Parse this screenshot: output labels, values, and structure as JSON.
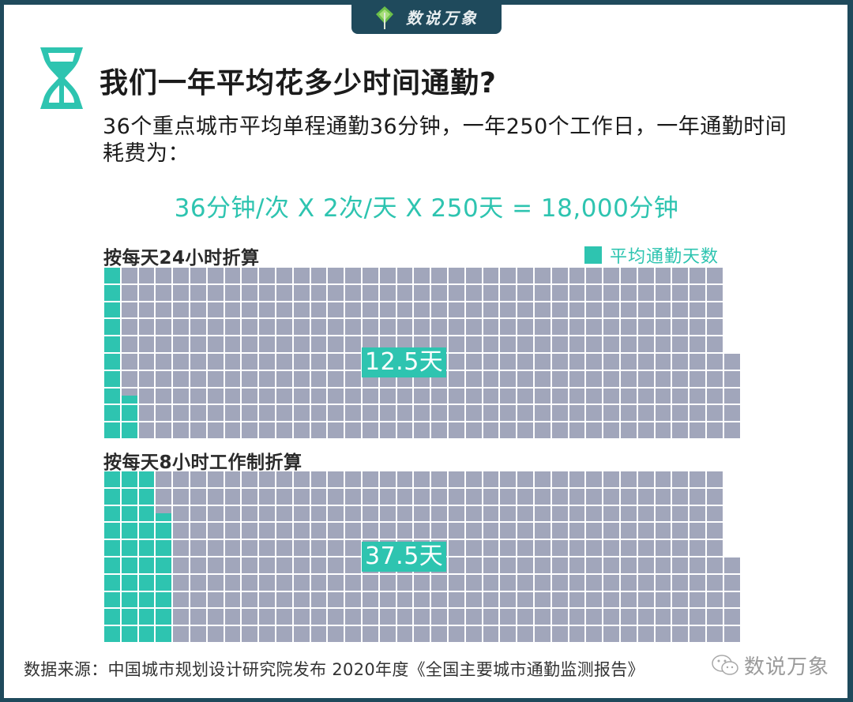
{
  "brand": {
    "name": "数说万象",
    "icon": "leaf-tree-logo-icon"
  },
  "header": {
    "icon": "hourglass-icon",
    "title": "我们一年平均花多少时间通勤?"
  },
  "intro": {
    "text": "36个重点城市平均单程通勤36分钟，一年250个工作日，一年通勤时间耗费为："
  },
  "formula": {
    "text": "36分钟/次 X 2次/天 X 250天 = 18,000分钟"
  },
  "legend": {
    "label": "平均通勤天数",
    "color": "#2ec4b0"
  },
  "colors": {
    "accent": "#2ec4b0",
    "empty_cell": "#a1a6bb",
    "frame": "#1f4a5c"
  },
  "grids": [
    {
      "title": "按每天24小时折算",
      "value_label": "12.5天"
    },
    {
      "title": "按每天8小时工作制折算",
      "value_label": "37.5天"
    }
  ],
  "chart_data": [
    {
      "type": "waffle",
      "title": "按每天24小时折算",
      "total_cells": 365,
      "columns": 37,
      "rows": 10,
      "filled": 12.5,
      "unit": "天",
      "legend": [
        "平均通勤天数"
      ],
      "annotation": "12.5天",
      "fill_order": "column-major, bottom-up, left-to-right"
    },
    {
      "type": "waffle",
      "title": "按每天8小时工作制折算",
      "total_cells": 365,
      "columns": 37,
      "rows": 10,
      "filled": 37.5,
      "unit": "天",
      "legend": [
        "平均通勤天数"
      ],
      "annotation": "37.5天",
      "fill_order": "column-major, bottom-up, left-to-right"
    }
  ],
  "footer": {
    "source": "数据来源：中国城市规划设计研究院发布 2020年度《全国主要城市通勤监测报告》",
    "watermark": "数说万象"
  }
}
